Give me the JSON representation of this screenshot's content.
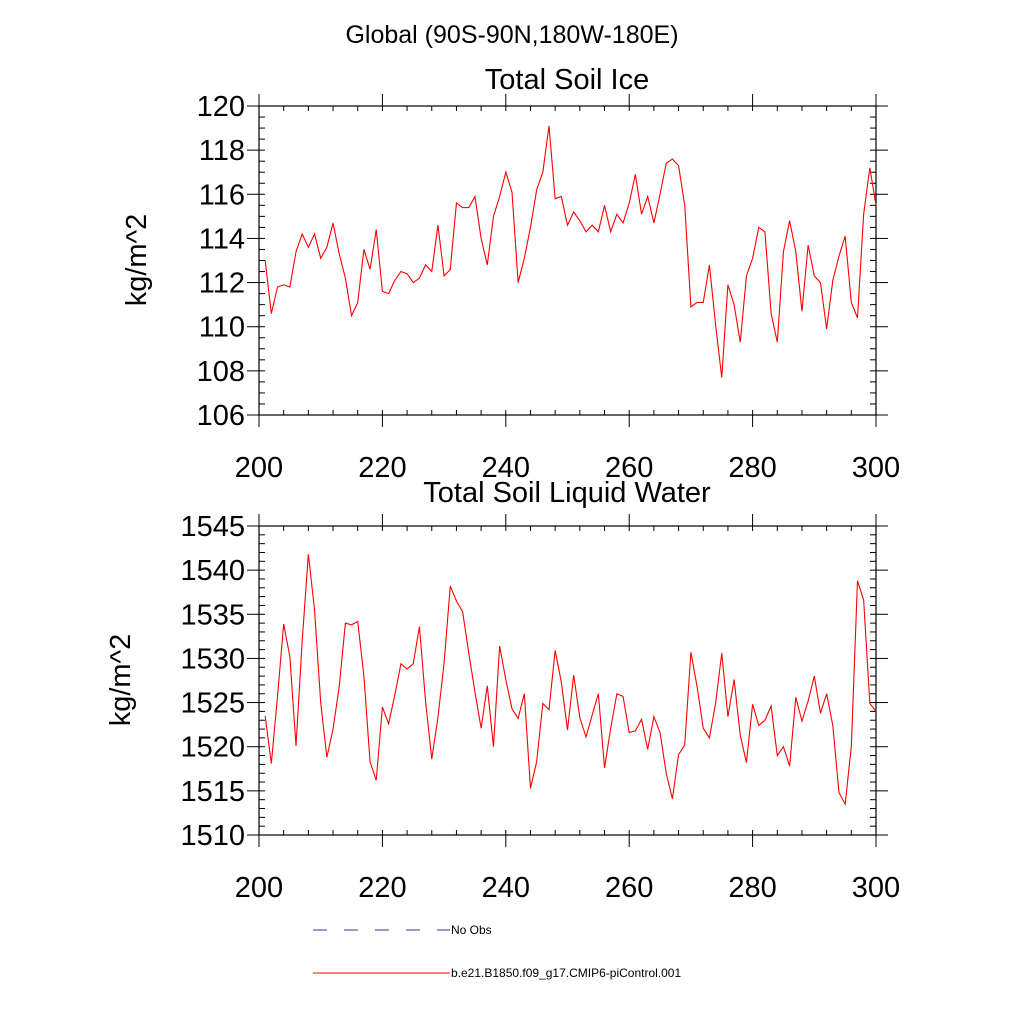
{
  "figure": {
    "main_title": "Global (90S-90N,180W-180E)",
    "legend": [
      {
        "label": "No Obs",
        "color": "#283c8c",
        "style": "dashed"
      },
      {
        "label": "b.e21.B1850.f09_g17.CMIP6-piControl.001",
        "color": "#ff0000",
        "style": "solid"
      }
    ]
  },
  "chart_data": [
    {
      "type": "line",
      "title": "Total Soil Ice",
      "xlabel": "",
      "ylabel": "kg/m^2",
      "xlim": [
        200,
        300
      ],
      "ylim": [
        106,
        120
      ],
      "x_ticks": [
        200,
        220,
        240,
        260,
        280,
        300
      ],
      "y_ticks": [
        106,
        108,
        110,
        112,
        114,
        116,
        118,
        120
      ],
      "y_minor_step": 0.5,
      "x_minor_step": 4,
      "color": "#ff0000",
      "series_name": "b.e21.B1850.f09_g17.CMIP6-piControl.001",
      "x_start": 201,
      "values": [
        113.0,
        110.6,
        111.8,
        111.9,
        111.8,
        113.4,
        114.2,
        113.6,
        114.2,
        113.1,
        113.6,
        114.7,
        113.3,
        112.2,
        110.5,
        111.1,
        113.5,
        112.6,
        114.4,
        111.6,
        111.5,
        112.1,
        112.5,
        112.4,
        112.0,
        112.2,
        112.8,
        112.5,
        114.6,
        112.3,
        112.6,
        115.6,
        115.4,
        115.4,
        115.9,
        114.0,
        112.8,
        115.0,
        115.9,
        117.0,
        116.1,
        112.0,
        113.1,
        114.5,
        116.2,
        117.0,
        119.1,
        115.8,
        115.9,
        114.6,
        115.2,
        114.8,
        114.3,
        114.6,
        114.3,
        115.5,
        114.3,
        115.1,
        114.7,
        115.6,
        116.9,
        115.1,
        115.9,
        114.7,
        116.0,
        117.4,
        117.6,
        117.3,
        115.5,
        110.9,
        111.1,
        111.1,
        112.8,
        110.1,
        107.7,
        111.9,
        111.0,
        109.3,
        112.3,
        113.1,
        114.5,
        114.3,
        110.6,
        109.3,
        113.4,
        114.8,
        113.4,
        110.7,
        113.7,
        112.3,
        112.0,
        109.9,
        112.1,
        113.2,
        114.1,
        111.1,
        110.4,
        115.1,
        117.2,
        115.5
      ]
    },
    {
      "type": "line",
      "title": "Total Soil Liquid Water",
      "xlabel": "",
      "ylabel": "kg/m^2",
      "xlim": [
        200,
        300
      ],
      "ylim": [
        1510,
        1545
      ],
      "x_ticks": [
        200,
        220,
        240,
        260,
        280,
        300
      ],
      "y_ticks": [
        1510,
        1515,
        1520,
        1525,
        1530,
        1535,
        1540,
        1545
      ],
      "y_minor_step": 1,
      "x_minor_step": 4,
      "color": "#ff0000",
      "series_name": "b.e21.B1850.f09_g17.CMIP6-piControl.001",
      "x_start": 201,
      "values": [
        1523.5,
        1518.1,
        1525.7,
        1533.9,
        1530.2,
        1520.1,
        1532.0,
        1541.8,
        1535.5,
        1525.0,
        1518.8,
        1522.0,
        1526.8,
        1534.0,
        1533.8,
        1534.2,
        1528.0,
        1518.3,
        1516.2,
        1524.5,
        1522.6,
        1525.8,
        1529.4,
        1528.8,
        1529.4,
        1533.6,
        1525.1,
        1518.6,
        1523.3,
        1529.5,
        1538.2,
        1536.5,
        1535.3,
        1530.6,
        1526.2,
        1522.1,
        1526.9,
        1520.0,
        1531.4,
        1527.6,
        1524.3,
        1523.2,
        1526.0,
        1515.3,
        1518.3,
        1524.9,
        1524.2,
        1530.9,
        1527.3,
        1521.9,
        1528.1,
        1523.3,
        1521.1,
        1523.6,
        1526.0,
        1517.6,
        1522.1,
        1526.0,
        1525.7,
        1521.6,
        1521.8,
        1523.1,
        1519.7,
        1523.4,
        1521.6,
        1517.0,
        1514.1,
        1519.1,
        1520.2,
        1530.7,
        1526.8,
        1522.1,
        1521.0,
        1524.9,
        1530.6,
        1523.4,
        1527.6,
        1521.3,
        1518.2,
        1524.8,
        1522.4,
        1523.0,
        1524.6,
        1519.0,
        1520.0,
        1517.8,
        1525.6,
        1522.9,
        1525.2,
        1528.0,
        1523.8,
        1526.0,
        1522.4,
        1514.8,
        1513.5,
        1520.0,
        1538.8,
        1536.6,
        1524.9,
        1524.0
      ]
    }
  ]
}
